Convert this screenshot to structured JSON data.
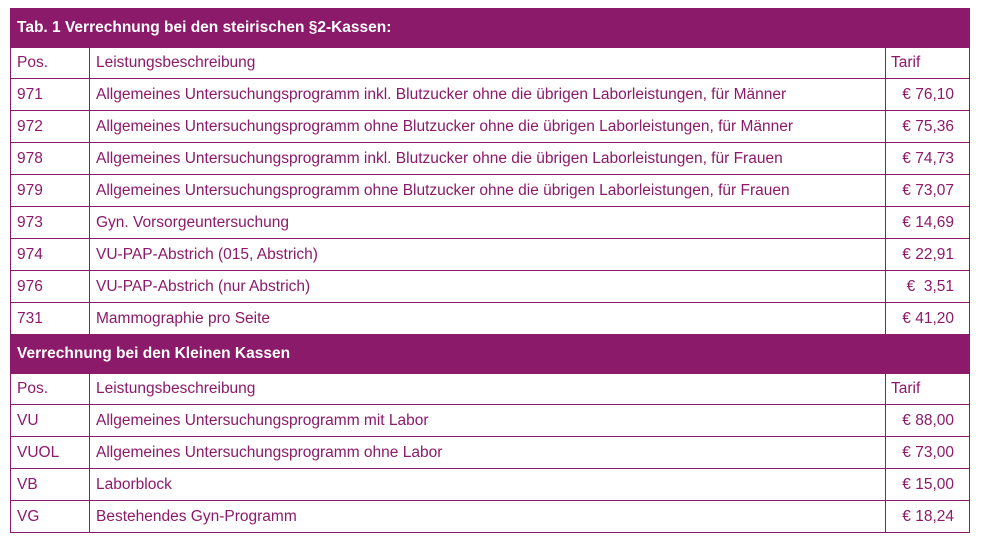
{
  "table": {
    "section1": {
      "title": "Tab. 1 Verrechnung bei den steirischen §2-Kassen:",
      "headers": {
        "pos": "Pos.",
        "desc": "Leistungsbeschreibung",
        "tarif": "Tarif"
      },
      "rows": [
        {
          "pos": "971",
          "desc": "Allgemeines Untersuchungsprogramm inkl. Blutzucker ohne die übrigen Laborleistungen, für Männer",
          "tarif": "€ 76,10"
        },
        {
          "pos": "972",
          "desc": "Allgemeines Untersuchungsprogramm ohne Blutzucker ohne die übrigen Laborleistungen, für Männer",
          "tarif": "€ 75,36"
        },
        {
          "pos": "978",
          "desc": "Allgemeines Untersuchungsprogramm inkl. Blutzucker ohne die übrigen Laborleistungen, für Frauen",
          "tarif": "€ 74,73"
        },
        {
          "pos": "979",
          "desc": "Allgemeines Untersuchungsprogramm ohne Blutzucker ohne die übrigen Laborleistungen, für Frauen",
          "tarif": "€ 73,07"
        },
        {
          "pos": "973",
          "desc": "Gyn. Vorsorgeuntersuchung",
          "tarif": "€ 14,69"
        },
        {
          "pos": "974",
          "desc": "VU-PAP-Abstrich (015, Abstrich)",
          "tarif": "€ 22,91"
        },
        {
          "pos": "976",
          "desc": "VU-PAP-Abstrich (nur Abstrich)",
          "tarif": "€  3,51"
        },
        {
          "pos": "731",
          "desc": "Mammographie pro Seite",
          "tarif": "€ 41,20"
        }
      ]
    },
    "section2": {
      "title": "Verrechnung bei den Kleinen Kassen",
      "headers": {
        "pos": "Pos.",
        "desc": "Leistungsbeschreibung",
        "tarif": "Tarif"
      },
      "rows": [
        {
          "pos": "VU",
          "desc": "Allgemeines Untersuchungsprogramm mit Labor",
          "tarif": "€ 88,00"
        },
        {
          "pos": "VUOL",
          "desc": "Allgemeines Untersuchungsprogramm ohne Labor",
          "tarif": "€ 73,00"
        },
        {
          "pos": "VB",
          "desc": "Laborblock",
          "tarif": "€ 15,00"
        },
        {
          "pos": "VG",
          "desc": "Bestehendes Gyn-Programm",
          "tarif": "€ 18,24"
        }
      ]
    }
  }
}
